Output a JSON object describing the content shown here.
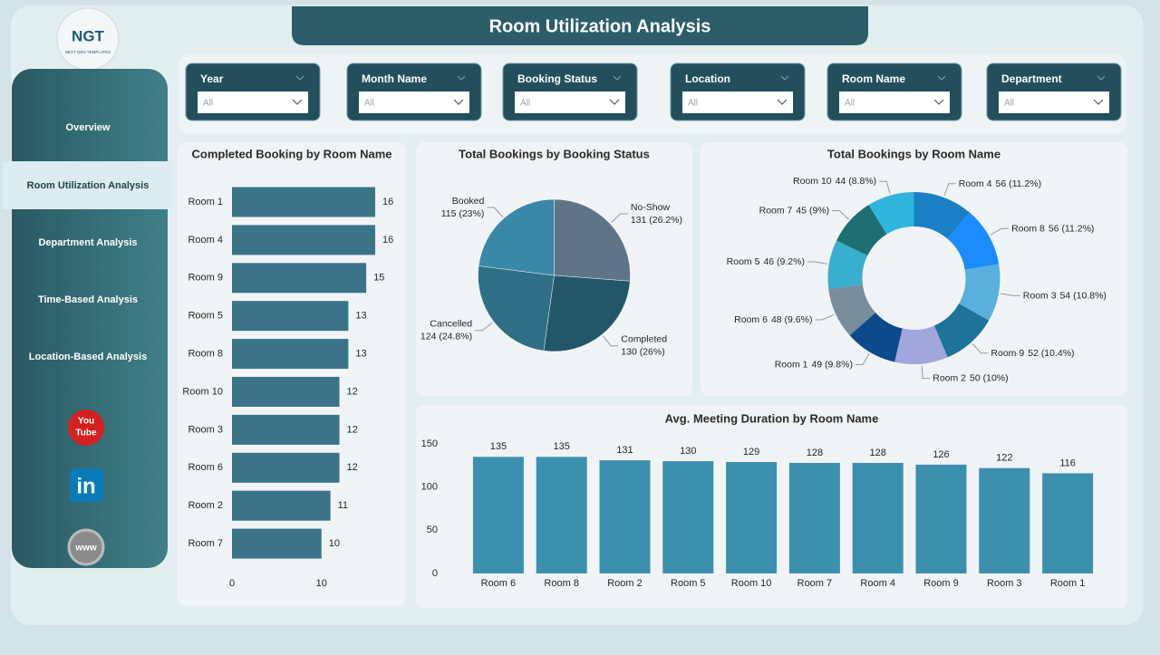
{
  "header": {
    "title": "Room Utilization Analysis",
    "logo": "NGT",
    "logo_sub": "NEXT GEN TEMPLATES"
  },
  "nav": [
    "Overview",
    "Room Utilization Analysis",
    "Department Analysis",
    "Time-Based Analysis",
    "Location-Based Analysis"
  ],
  "social": {
    "youtube": [
      "You",
      "Tube"
    ],
    "linkedin": "in",
    "web": "www"
  },
  "filters": [
    {
      "label": "Year",
      "value": "All"
    },
    {
      "label": "Month Name",
      "value": "All"
    },
    {
      "label": "Booking Status",
      "value": "All"
    },
    {
      "label": "Location",
      "value": "All"
    },
    {
      "label": "Room Name",
      "value": "All"
    },
    {
      "label": "Department",
      "value": "All"
    }
  ],
  "chart_data": [
    {
      "type": "bar",
      "orientation": "horizontal",
      "title": "Completed Booking by Room Name",
      "categories": [
        "Room 1",
        "Room 4",
        "Room 9",
        "Room 5",
        "Room 8",
        "Room 10",
        "Room 3",
        "Room 6",
        "Room 2",
        "Room 7"
      ],
      "values": [
        16,
        16,
        15,
        13,
        13,
        12,
        12,
        12,
        11,
        10
      ],
      "color": "#3b7488",
      "xlim": [
        0,
        16
      ],
      "xticks": [
        0,
        10
      ]
    },
    {
      "type": "pie",
      "title": "Total Bookings by Booking Status",
      "categories": [
        "No-Show",
        "Completed",
        "Cancelled",
        "Booked"
      ],
      "values": [
        131,
        130,
        124,
        115
      ],
      "value_labels": [
        "131 (26.2%)",
        "130 (26%)",
        "124 (24.8%)",
        "115 (23%)"
      ],
      "colors": [
        "#607487",
        "#235669",
        "#2e6f86",
        "#3a88a8"
      ]
    },
    {
      "type": "donut",
      "title": "Total Bookings by Room Name",
      "categories": [
        "Room 4",
        "Room 8",
        "Room 3",
        "Room 9",
        "Room 2",
        "Room 1",
        "Room 6",
        "Room 5",
        "Room 7",
        "Room 10"
      ],
      "values": [
        56,
        56,
        54,
        52,
        50,
        49,
        48,
        46,
        45,
        44
      ],
      "value_labels": [
        "56 (11.2%)",
        "56 (11.2%)",
        "54 (10.8%)",
        "52 (10.4%)",
        "50 (10%)",
        "49 (9.8%)",
        "48 (9.6%)",
        "46 (9.2%)",
        "45 (9%)",
        "44 (8.8%)"
      ],
      "colors": [
        "#1b7fc3",
        "#1a8cff",
        "#5ab0dc",
        "#1e7399",
        "#a1a7dc",
        "#0d4a8c",
        "#7a8d9c",
        "#39afd0",
        "#1d6e73",
        "#31b5dd"
      ]
    },
    {
      "type": "bar",
      "orientation": "vertical",
      "title": "Avg. Meeting Duration by Room Name",
      "categories": [
        "Room 6",
        "Room 8",
        "Room 2",
        "Room 5",
        "Room 10",
        "Room 7",
        "Room 4",
        "Room 9",
        "Room 3",
        "Room 1"
      ],
      "values": [
        135,
        135,
        131,
        130,
        129,
        128,
        128,
        126,
        122,
        116
      ],
      "color": "#3d8fae",
      "ylim": [
        0,
        150
      ],
      "yticks": [
        0,
        50,
        100,
        150
      ]
    }
  ]
}
